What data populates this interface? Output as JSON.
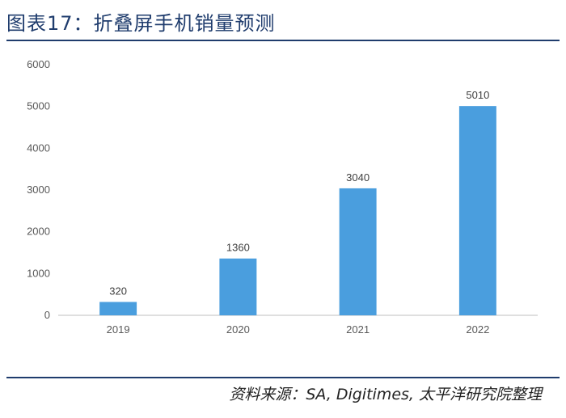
{
  "header": {
    "title": "图表17：折叠屏手机销量预测"
  },
  "footer": {
    "source": "资料来源：SA, Digitimes, 太平洋研究院整理"
  },
  "colors": {
    "bar": "#4a9ede",
    "rule": "#1f3c6d",
    "axis": "#bfbfbf"
  },
  "chart_data": {
    "type": "bar",
    "title": "",
    "xlabel": "",
    "ylabel": "",
    "categories": [
      "2019",
      "2020",
      "2021",
      "2022"
    ],
    "values": [
      320,
      1360,
      3040,
      5010
    ],
    "ylim": [
      0,
      6000
    ],
    "yticks": [
      0,
      1000,
      2000,
      3000,
      4000,
      5000,
      6000
    ],
    "grid": false,
    "legend": "none",
    "data_labels": true
  }
}
